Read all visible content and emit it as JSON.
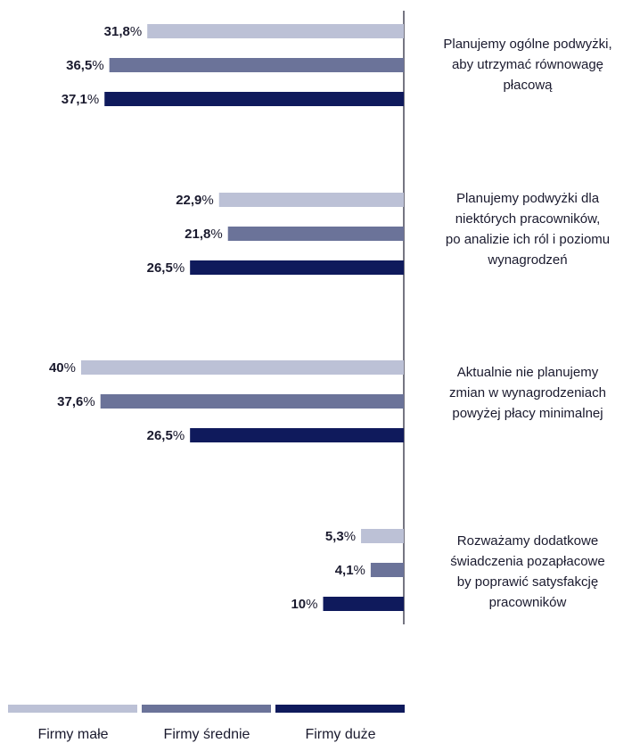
{
  "chart_data": {
    "type": "bar",
    "orientation": "horizontal",
    "categories": [
      "Planujemy ogólne podwyżki, aby utrzymać równowagę płacową",
      "Planujemy podwyżki dla niektórych pracowników, po analizie ich ról i poziomu wynagrodzeń",
      "Aktualnie nie planujemy zmian w wynagrodzeniach powyżej płacy minimalnej",
      "Rozważamy dodatkowe świadczenia pozapłacowe by poprawić satysfakcję pracowników"
    ],
    "category_lines": [
      [
        "Planujemy ogólne podwyżki,",
        "aby utrzymać równowagę",
        "płacową"
      ],
      [
        "Planujemy podwyżki dla",
        "niektórych pracowników,",
        "po analizie ich ról i poziomu",
        "wynagrodzeń"
      ],
      [
        "Aktualnie nie planujemy",
        "zmian w wynagrodzeniach",
        "powyżej płacy minimalnej"
      ],
      [
        "Rozważamy dodatkowe",
        "świadczenia pozapłacowe",
        "by poprawić satysfakcję",
        "pracowników"
      ]
    ],
    "series": [
      {
        "name": "Firmy małe",
        "color": "#bcc1d6",
        "values": [
          31.8,
          22.9,
          40,
          5.3
        ],
        "labels": [
          "31,8",
          "22,9",
          "40",
          "5,3"
        ]
      },
      {
        "name": "Firmy średnie",
        "color": "#6b7399",
        "values": [
          36.5,
          21.8,
          37.6,
          4.1
        ],
        "labels": [
          "36,5",
          "21,8",
          "37,6",
          "4,1"
        ]
      },
      {
        "name": "Firmy duże",
        "color": "#0f1a5c",
        "values": [
          37.1,
          26.5,
          26.5,
          10
        ],
        "labels": [
          "37,1",
          "26,5",
          "26,5",
          "10"
        ]
      }
    ],
    "value_suffix": "%",
    "xlim": [
      0,
      40
    ],
    "legend_position": "bottom",
    "grid": false
  }
}
